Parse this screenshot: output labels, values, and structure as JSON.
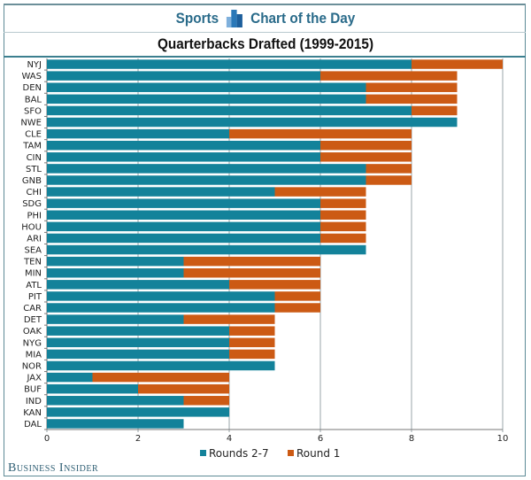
{
  "header": {
    "left": "Sports",
    "right": "Chart of the Day",
    "logo_icon": "bar-chart-icon"
  },
  "footer": {
    "brand": "Business Insider"
  },
  "colors": {
    "rounds_2_7": "#13829a",
    "round_1": "#cc5a14",
    "grid": "#9aa5aa"
  },
  "chart_data": {
    "type": "bar",
    "orientation": "horizontal",
    "stacked": true,
    "title": "Quarterbacks Drafted (1999-2015)",
    "xlabel": "",
    "ylabel": "",
    "xlim": [
      0,
      10
    ],
    "xticks": [
      0,
      2,
      4,
      6,
      8,
      10
    ],
    "grid": true,
    "legend_position": "bottom",
    "categories": [
      "NYJ",
      "WAS",
      "DEN",
      "BAL",
      "SFO",
      "NWE",
      "CLE",
      "TAM",
      "CIN",
      "STL",
      "GNB",
      "CHI",
      "SDG",
      "PHI",
      "HOU",
      "ARI",
      "SEA",
      "TEN",
      "MIN",
      "ATL",
      "PIT",
      "CAR",
      "DET",
      "OAK",
      "NYG",
      "MIA",
      "NOR",
      "JAX",
      "BUF",
      "IND",
      "KAN",
      "DAL"
    ],
    "series": [
      {
        "name": "Rounds 2-7",
        "values": [
          8,
          6,
          7,
          7,
          8,
          9,
          4,
          6,
          6,
          7,
          7,
          5,
          6,
          6,
          6,
          6,
          7,
          3,
          3,
          4,
          5,
          5,
          3,
          4,
          4,
          4,
          5,
          1,
          2,
          3,
          4,
          3
        ]
      },
      {
        "name": "Round 1",
        "values": [
          2,
          3,
          2,
          2,
          1,
          0,
          4,
          2,
          2,
          1,
          1,
          2,
          1,
          1,
          1,
          1,
          0,
          3,
          3,
          2,
          1,
          1,
          2,
          1,
          1,
          1,
          0,
          3,
          2,
          1,
          0,
          0
        ]
      }
    ]
  }
}
